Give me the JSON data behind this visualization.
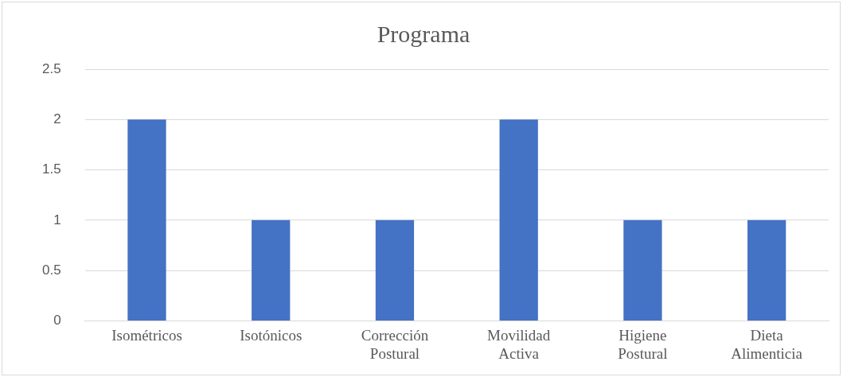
{
  "chart_data": {
    "type": "bar",
    "title": "Programa",
    "categories": [
      "Isométricos",
      "Isotónicos",
      "Corrección Postural",
      "Movilidad Activa",
      "Higiene Postural",
      "Dieta Alimenticia"
    ],
    "values": [
      2,
      1,
      1,
      2,
      1,
      1
    ],
    "color": "#4472c4",
    "ylim": [
      0,
      2.5
    ],
    "yticks": [
      0,
      0.5,
      1,
      1.5,
      2,
      2.5
    ],
    "grid": "y",
    "legend": false
  }
}
